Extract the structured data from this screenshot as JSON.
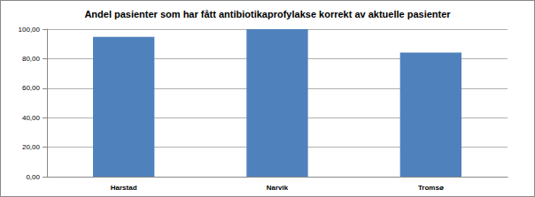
{
  "chart_data": {
    "type": "bar",
    "title": "Andel pasienter som har fått antibiotikaprofylakse korrekt av aktuelle pasienter",
    "categories": [
      "Harstad",
      "Narvik",
      "Tromsø"
    ],
    "values": [
      94.7,
      100,
      84.1
    ],
    "color": "#4f81bd",
    "ylim": [
      0,
      100
    ],
    "yticks": [
      {
        "value": 0,
        "label": "0,00"
      },
      {
        "value": 20,
        "label": "20,00"
      },
      {
        "value": 40,
        "label": "40,00"
      },
      {
        "value": 60,
        "label": "60,00"
      },
      {
        "value": 80,
        "label": "80,00"
      },
      {
        "value": 100,
        "label": "100,00"
      }
    ],
    "grid": true
  }
}
